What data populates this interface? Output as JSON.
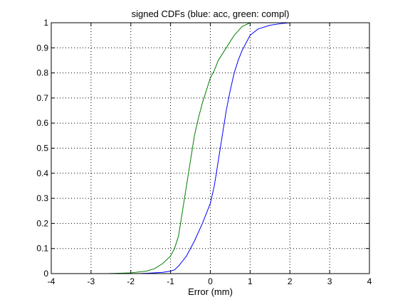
{
  "chart_data": {
    "type": "line",
    "title": "signed CDFs (blue: acc, green: compl)",
    "xlabel": "Error (mm)",
    "ylabel": "",
    "xlim": [
      -4,
      4
    ],
    "ylim": [
      0,
      1
    ],
    "xticks": [
      -4,
      -3,
      -2,
      -1,
      0,
      1,
      2,
      3,
      4
    ],
    "yticks": [
      0,
      0.1,
      0.2,
      0.3,
      0.4,
      0.5,
      0.6,
      0.7,
      0.8,
      0.9,
      1
    ],
    "grid": true,
    "grid_style": "dotted",
    "legend": "none",
    "series": [
      {
        "color": "#0000ff",
        "x": [
          -1.8,
          -1.5,
          -1.2,
          -1.0,
          -0.9,
          -0.8,
          -0.6,
          -0.4,
          -0.2,
          0.0,
          0.1,
          0.2,
          0.3,
          0.4,
          0.5,
          0.6,
          0.7,
          0.8,
          0.9,
          1.0,
          1.2,
          1.5,
          1.8,
          2.0,
          2.5,
          3.0
        ],
        "y": [
          0.0,
          0.002,
          0.005,
          0.01,
          0.015,
          0.03,
          0.07,
          0.13,
          0.2,
          0.28,
          0.35,
          0.45,
          0.55,
          0.65,
          0.73,
          0.8,
          0.85,
          0.89,
          0.92,
          0.95,
          0.975,
          0.99,
          0.997,
          1.0,
          1.0,
          1.0
        ]
      },
      {
        "color": "#008000",
        "x": [
          -2.6,
          -2.0,
          -1.6,
          -1.4,
          -1.2,
          -1.0,
          -0.9,
          -0.8,
          -0.7,
          -0.6,
          -0.5,
          -0.4,
          -0.3,
          -0.2,
          -0.1,
          0.0,
          0.1,
          0.2,
          0.4,
          0.6,
          0.8,
          1.0,
          1.5,
          2.0
        ],
        "y": [
          0.0,
          0.003,
          0.01,
          0.02,
          0.04,
          0.07,
          0.1,
          0.15,
          0.25,
          0.35,
          0.45,
          0.55,
          0.62,
          0.68,
          0.73,
          0.78,
          0.81,
          0.85,
          0.9,
          0.95,
          0.985,
          1.0,
          1.0,
          1.0
        ]
      }
    ]
  }
}
